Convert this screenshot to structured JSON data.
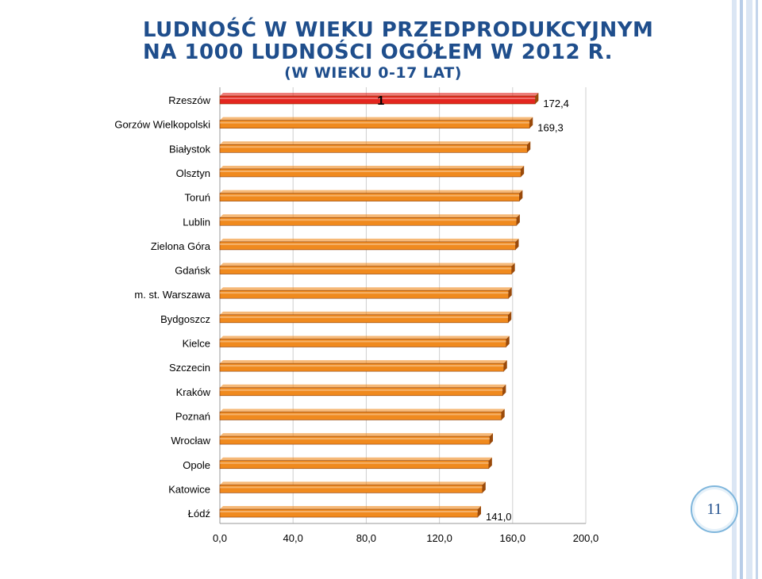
{
  "slide": {
    "title_line1": "LUDNOŚĆ W WIEKU PRZEDPRODUKCYJNYM",
    "title_line2": "NA 1000 LUDNOŚCI OGÓŁEM W 2012 R.",
    "title_line3": "(W WIEKU 0-17 LAT)",
    "slide_number": "11"
  },
  "colors": {
    "highlight_bar": "#e3261f",
    "bar": "#f08a1e",
    "bar_side": "#9a4a0a",
    "title": "#1f4e8c",
    "border": "#c9d9ee"
  },
  "chart_data": {
    "type": "bar",
    "orientation": "horizontal",
    "categories": [
      "Rzeszów",
      "Gorzów Wielkopolski",
      "Białystok",
      "Olsztyn",
      "Toruń",
      "Lublin",
      "Zielona Góra",
      "Gdańsk",
      "m. st. Warszawa",
      "Bydgoszcz",
      "Kielce",
      "Szczecin",
      "Kraków",
      "Poznań",
      "Wrocław",
      "Opole",
      "Katowice",
      "Łódź"
    ],
    "values": [
      172.4,
      169.3,
      168.0,
      164.5,
      163.7,
      162.2,
      161.6,
      159.5,
      157.8,
      157.6,
      156.5,
      155.2,
      154.6,
      153.9,
      147.5,
      147.0,
      143.5,
      141.0
    ],
    "data_labels": [
      "172,4",
      "169,3",
      "",
      "",
      "",
      "",
      "",
      "",
      "",
      "",
      "",
      "",
      "",
      "",
      "",
      "",
      "",
      "141,0"
    ],
    "annotation": "1",
    "highlight_index": 0,
    "xlim": [
      0,
      200
    ],
    "xticks": [
      "0,0",
      "40,0",
      "80,0",
      "120,0",
      "160,0",
      "200,0"
    ],
    "xlabel": "",
    "ylabel": "",
    "grid": true
  }
}
